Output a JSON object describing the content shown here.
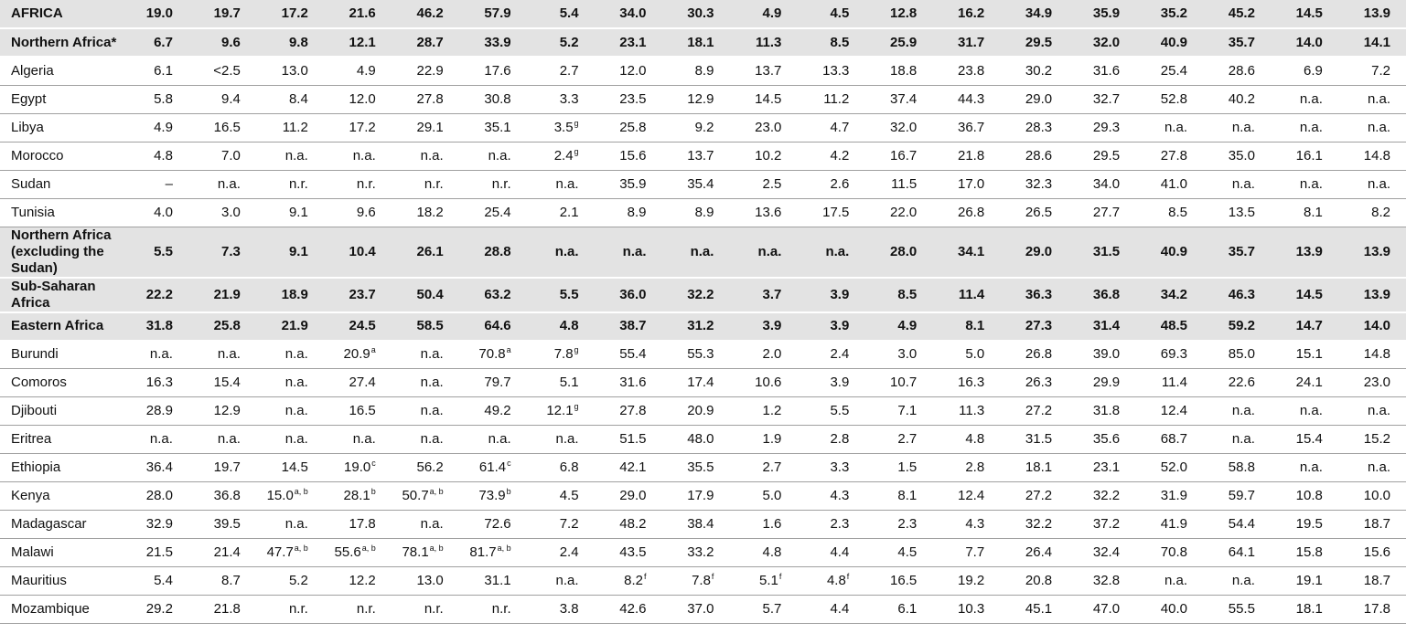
{
  "table": {
    "rows": [
      {
        "name": "AFRICA",
        "aggregate": true,
        "cells": [
          "19.0",
          "19.7",
          "17.2",
          "21.6",
          "46.2",
          "57.9",
          "5.4",
          "34.0",
          "30.3",
          "4.9",
          "4.5",
          "12.8",
          "16.2",
          "34.9",
          "35.9",
          "35.2",
          "45.2",
          "14.5",
          "13.9"
        ]
      },
      {
        "name": "Northern Africa*",
        "aggregate": true,
        "cells": [
          "6.7",
          "9.6",
          "9.8",
          "12.1",
          "28.7",
          "33.9",
          "5.2",
          "23.1",
          "18.1",
          "11.3",
          "8.5",
          "25.9",
          "31.7",
          "29.5",
          "32.0",
          "40.9",
          "35.7",
          "14.0",
          "14.1"
        ]
      },
      {
        "name": "Algeria",
        "aggregate": false,
        "cells": [
          "6.1",
          "<2.5",
          "13.0",
          "4.9",
          "22.9",
          "17.6",
          "2.7",
          "12.0",
          "8.9",
          "13.7",
          "13.3",
          "18.8",
          "23.8",
          "30.2",
          "31.6",
          "25.4",
          "28.6",
          "6.9",
          "7.2"
        ]
      },
      {
        "name": "Egypt",
        "aggregate": false,
        "cells": [
          "5.8",
          "9.4",
          "8.4",
          "12.0",
          "27.8",
          "30.8",
          "3.3",
          "23.5",
          "12.9",
          "14.5",
          "11.2",
          "37.4",
          "44.3",
          "29.0",
          "32.7",
          "52.8",
          "40.2",
          "n.a.",
          "n.a."
        ]
      },
      {
        "name": "Libya",
        "aggregate": false,
        "cells": [
          "4.9",
          "16.5",
          "11.2",
          "17.2",
          "29.1",
          "35.1",
          {
            "text": "3.5",
            "sup": "g"
          },
          "25.8",
          "9.2",
          "23.0",
          "4.7",
          "32.0",
          "36.7",
          "28.3",
          "29.3",
          "n.a.",
          "n.a.",
          "n.a.",
          "n.a."
        ]
      },
      {
        "name": "Morocco",
        "aggregate": false,
        "cells": [
          "4.8",
          "7.0",
          "n.a.",
          "n.a.",
          "n.a.",
          "n.a.",
          {
            "text": "2.4",
            "sup": "g"
          },
          "15.6",
          "13.7",
          "10.2",
          "4.2",
          "16.7",
          "21.8",
          "28.6",
          "29.5",
          "27.8",
          "35.0",
          "16.1",
          "14.8"
        ]
      },
      {
        "name": "Sudan",
        "aggregate": false,
        "cells": [
          "–",
          "n.a.",
          "n.r.",
          "n.r.",
          "n.r.",
          "n.r.",
          "n.a.",
          "35.9",
          "35.4",
          "2.5",
          "2.6",
          "11.5",
          "17.0",
          "32.3",
          "34.0",
          "41.0",
          "n.a.",
          "n.a.",
          "n.a."
        ]
      },
      {
        "name": "Tunisia",
        "aggregate": false,
        "cells": [
          "4.0",
          "3.0",
          "9.1",
          "9.6",
          "18.2",
          "25.4",
          "2.1",
          "8.9",
          "8.9",
          "13.6",
          "17.5",
          "22.0",
          "26.8",
          "26.5",
          "27.7",
          "8.5",
          "13.5",
          "8.1",
          "8.2"
        ]
      },
      {
        "name": "Northern Africa (excluding the Sudan)",
        "aggregate": true,
        "cells": [
          "5.5",
          "7.3",
          "9.1",
          "10.4",
          "26.1",
          "28.8",
          "n.a.",
          "n.a.",
          "n.a.",
          "n.a.",
          "n.a.",
          "28.0",
          "34.1",
          "29.0",
          "31.5",
          "40.9",
          "35.7",
          "13.9",
          "13.9"
        ]
      },
      {
        "name": "Sub-Saharan Africa",
        "aggregate": true,
        "cells": [
          "22.2",
          "21.9",
          "18.9",
          "23.7",
          "50.4",
          "63.2",
          "5.5",
          "36.0",
          "32.2",
          "3.7",
          "3.9",
          "8.5",
          "11.4",
          "36.3",
          "36.8",
          "34.2",
          "46.3",
          "14.5",
          "13.9"
        ]
      },
      {
        "name": "Eastern Africa",
        "aggregate": true,
        "cells": [
          "31.8",
          "25.8",
          "21.9",
          "24.5",
          "58.5",
          "64.6",
          "4.8",
          "38.7",
          "31.2",
          "3.9",
          "3.9",
          "4.9",
          "8.1",
          "27.3",
          "31.4",
          "48.5",
          "59.2",
          "14.7",
          "14.0"
        ]
      },
      {
        "name": "Burundi",
        "aggregate": false,
        "cells": [
          "n.a.",
          "n.a.",
          "n.a.",
          {
            "text": "20.9",
            "sup": "a"
          },
          "n.a.",
          {
            "text": "70.8",
            "sup": "a"
          },
          {
            "text": "7.8",
            "sup": "g"
          },
          "55.4",
          "55.3",
          "2.0",
          "2.4",
          "3.0",
          "5.0",
          "26.8",
          "39.0",
          "69.3",
          "85.0",
          "15.1",
          "14.8"
        ]
      },
      {
        "name": "Comoros",
        "aggregate": false,
        "cells": [
          "16.3",
          "15.4",
          "n.a.",
          "27.4",
          "n.a.",
          "79.7",
          "5.1",
          "31.6",
          "17.4",
          "10.6",
          "3.9",
          "10.7",
          "16.3",
          "26.3",
          "29.9",
          "11.4",
          "22.6",
          "24.1",
          "23.0"
        ]
      },
      {
        "name": "Djibouti",
        "aggregate": false,
        "cells": [
          "28.9",
          "12.9",
          "n.a.",
          "16.5",
          "n.a.",
          "49.2",
          {
            "text": "12.1",
            "sup": "g"
          },
          "27.8",
          "20.9",
          "1.2",
          "5.5",
          "7.1",
          "11.3",
          "27.2",
          "31.8",
          "12.4",
          "n.a.",
          "n.a.",
          "n.a."
        ]
      },
      {
        "name": "Eritrea",
        "aggregate": false,
        "cells": [
          "n.a.",
          "n.a.",
          "n.a.",
          "n.a.",
          "n.a.",
          "n.a.",
          "n.a.",
          "51.5",
          "48.0",
          "1.9",
          "2.8",
          "2.7",
          "4.8",
          "31.5",
          "35.6",
          "68.7",
          "n.a.",
          "15.4",
          "15.2"
        ]
      },
      {
        "name": "Ethiopia",
        "aggregate": false,
        "cells": [
          "36.4",
          "19.7",
          "14.5",
          {
            "text": "19.0",
            "sup": "c"
          },
          "56.2",
          {
            "text": "61.4",
            "sup": "c"
          },
          "6.8",
          "42.1",
          "35.5",
          "2.7",
          "3.3",
          "1.5",
          "2.8",
          "18.1",
          "23.1",
          "52.0",
          "58.8",
          "n.a.",
          "n.a."
        ]
      },
      {
        "name": "Kenya",
        "aggregate": false,
        "cells": [
          "28.0",
          "36.8",
          {
            "text": "15.0",
            "sup": "a, b"
          },
          {
            "text": "28.1",
            "sup": "b"
          },
          {
            "text": "50.7",
            "sup": "a, b"
          },
          {
            "text": "73.9",
            "sup": "b"
          },
          "4.5",
          "29.0",
          "17.9",
          "5.0",
          "4.3",
          "8.1",
          "12.4",
          "27.2",
          "32.2",
          "31.9",
          "59.7",
          "10.8",
          "10.0"
        ]
      },
      {
        "name": "Madagascar",
        "aggregate": false,
        "cells": [
          "32.9",
          "39.5",
          "n.a.",
          "17.8",
          "n.a.",
          "72.6",
          "7.2",
          "48.2",
          "38.4",
          "1.6",
          "2.3",
          "2.3",
          "4.3",
          "32.2",
          "37.2",
          "41.9",
          "54.4",
          "19.5",
          "18.7"
        ]
      },
      {
        "name": "Malawi",
        "aggregate": false,
        "cells": [
          "21.5",
          "21.4",
          {
            "text": "47.7",
            "sup": "a, b"
          },
          {
            "text": "55.6",
            "sup": "a, b"
          },
          {
            "text": "78.1",
            "sup": "a, b"
          },
          {
            "text": "81.7",
            "sup": "a, b"
          },
          "2.4",
          "43.5",
          "33.2",
          "4.8",
          "4.4",
          "4.5",
          "7.7",
          "26.4",
          "32.4",
          "70.8",
          "64.1",
          "15.8",
          "15.6"
        ]
      },
      {
        "name": "Mauritius",
        "aggregate": false,
        "cells": [
          "5.4",
          "8.7",
          "5.2",
          "12.2",
          "13.0",
          "31.1",
          "n.a.",
          {
            "text": "8.2",
            "sup": "f"
          },
          {
            "text": "7.8",
            "sup": "f"
          },
          {
            "text": "5.1",
            "sup": "f"
          },
          {
            "text": "4.8",
            "sup": "f"
          },
          "16.5",
          "19.2",
          "20.8",
          "32.8",
          "n.a.",
          "n.a.",
          "19.1",
          "18.7"
        ]
      },
      {
        "name": "Mozambique",
        "aggregate": false,
        "cells": [
          "29.2",
          "21.8",
          "n.r.",
          "n.r.",
          "n.r.",
          "n.r.",
          "3.8",
          "42.6",
          "37.0",
          "5.7",
          "4.4",
          "6.1",
          "10.3",
          "45.1",
          "47.0",
          "40.0",
          "55.5",
          "18.1",
          "17.8"
        ]
      }
    ]
  }
}
